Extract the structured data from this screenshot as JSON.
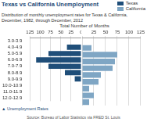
{
  "chart_data": {
    "type": "bar",
    "orientation": "horizontal",
    "title": "Texas vs California Unemployment",
    "subtitle": "Distribution of monthly unemployment rates for Texas & California, December, 1982, through December, 2012",
    "xlabel": "Total Number of Months",
    "annotations": [
      "▲ Unemployment Rates",
      "Source: Bureau of Labor Statistics via FRED St. Louis"
    ],
    "categories": [
      "3.0-3.9",
      "4.0-4.9",
      "5.0-5.9",
      "6.0-6.9",
      "7.0-7.9",
      "8.0-8.9",
      "9.0-9.9",
      "10.0-10.9",
      "11.0-11.9",
      "12.0-12.9"
    ],
    "series": [
      {
        "name": "Texas",
        "color": "#1f4e79",
        "values": [
          0,
          35,
          80,
          110,
          80,
          40,
          16,
          0,
          0,
          0
        ]
      },
      {
        "name": "California",
        "color": "#7fa6c4",
        "values": [
          0,
          20,
          75,
          70,
          65,
          40,
          35,
          15,
          25,
          15
        ]
      }
    ],
    "xlim": [
      0,
      125
    ],
    "xticks": [
      0,
      25,
      50,
      75,
      100,
      125
    ],
    "grid": true,
    "legend": "top-right"
  }
}
